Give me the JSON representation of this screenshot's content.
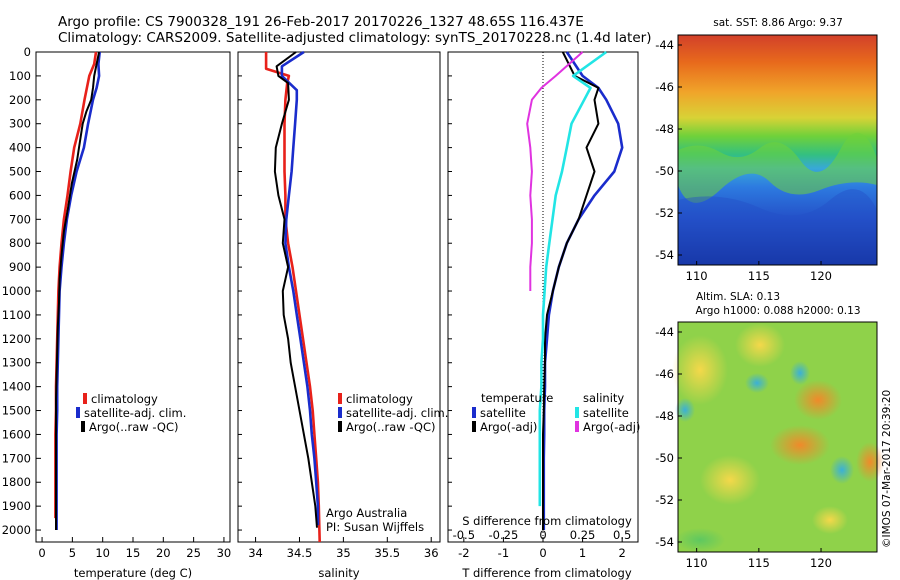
{
  "header": {
    "line1": "Argo profile: CS 7900328_191 26-Feb-2017 20170226_1327 48.65S 116.437E",
    "line2": "Climatology: CARS2009. Satellite-adjusted climatology: synTS_20170228.nc (1.4d later)"
  },
  "depth_ticks": [
    0,
    100,
    200,
    300,
    400,
    500,
    600,
    700,
    800,
    900,
    1000,
    1100,
    1200,
    1300,
    1400,
    1500,
    1600,
    1700,
    1800,
    1900,
    2000
  ],
  "panels": {
    "temperature": {
      "xlabel": "temperature (deg C)",
      "xticks": [
        0,
        5,
        10,
        15,
        20,
        25,
        30
      ],
      "legend": [
        "climatology",
        "satellite-adj. clim.",
        "Argo(..raw -QC)"
      ]
    },
    "salinity": {
      "xlabel": "salinity",
      "xticks": [
        "34",
        "34.5",
        "35",
        "35.5",
        "36"
      ],
      "legend": [
        "climatology",
        "satellite-adj. clim.",
        "Argo(..raw -QC)"
      ],
      "note1": "Argo Australia",
      "note2": "PI: Susan Wijffels"
    },
    "difference": {
      "xlabel": "T difference from climatology",
      "slabel": "S difference from climatology",
      "xticks": [
        "-2",
        "-1",
        "0",
        "1",
        "2"
      ],
      "sticks": [
        "-0.5",
        "-0.25",
        "0",
        "0.25",
        "0.5"
      ],
      "legend_head_t": "temperature",
      "legend_head_s": "salinity",
      "legend_t": [
        "satellite",
        "Argo(-adj)"
      ],
      "legend_s": [
        "satellite",
        "Argo(-adj)"
      ]
    }
  },
  "maps": {
    "sst_title": "sat. SST: 8.86 Argo: 9.37",
    "sla_title1": "Altim. SLA: 0.13",
    "sla_title2": "Argo h1000: 0.088 h2000: 0.13",
    "sst_yticks": [
      "-44",
      "-46",
      "-48",
      "-50",
      "-52",
      "-54"
    ],
    "sla_yticks": [
      "-44",
      "-46",
      "-48",
      "-50",
      "-52",
      "-54"
    ],
    "xticks": [
      "110",
      "115",
      "120"
    ]
  },
  "credit": "©IMOS 07-Mar-2017 20:39:20",
  "colors": {
    "climatology": "#e8211a",
    "satellite": "#1a2ccc",
    "argo": "#000000",
    "sat_s": "#22e5e5",
    "argo_s": "#e033e0"
  },
  "chart_data": [
    {
      "type": "line",
      "xlabel": "temperature (deg C)",
      "ylabel": "",
      "xlim": [
        -1,
        31
      ],
      "ylim": [
        2050,
        0
      ],
      "series": [
        {
          "name": "climatology",
          "x": [
            8.9,
            8.6,
            7.8,
            7.0,
            6.3,
            5.3,
            4.7,
            4.2,
            3.6,
            3.2,
            2.9,
            2.7,
            2.6,
            2.5,
            2.4,
            2.3,
            2.3,
            2.2,
            2.2,
            2.2,
            2.2,
            2.2
          ],
          "y": [
            0,
            50,
            100,
            200,
            300,
            400,
            500,
            600,
            700,
            800,
            900,
            1000,
            1100,
            1200,
            1300,
            1400,
            1500,
            1600,
            1700,
            1800,
            1900,
            1950
          ]
        },
        {
          "name": "satellite-adj. clim.",
          "x": [
            9.5,
            9.3,
            9.4,
            9.0,
            8.4,
            7.6,
            6.9,
            5.7,
            4.8,
            4.1,
            3.6,
            3.2,
            2.9,
            2.8,
            2.7,
            2.6,
            2.5,
            2.5,
            2.4,
            2.4,
            2.4,
            2.4,
            2.4
          ],
          "y": [
            0,
            50,
            100,
            150,
            200,
            300,
            400,
            500,
            600,
            700,
            800,
            900,
            1000,
            1100,
            1200,
            1300,
            1400,
            1500,
            1600,
            1700,
            1800,
            1900,
            2000
          ]
        },
        {
          "name": "Argo(..raw -QC)",
          "x": [
            9.4,
            9.0,
            8.6,
            8.4,
            8.1,
            7.3,
            6.7,
            6.1,
            5.8,
            4.9,
            4.3,
            3.6,
            3.2,
            2.9,
            2.8,
            2.6,
            2.5,
            2.4,
            2.3,
            2.3,
            2.3,
            2.3,
            2.3,
            2.3
          ],
          "y": [
            0,
            50,
            100,
            150,
            200,
            250,
            300,
            400,
            450,
            550,
            650,
            750,
            850,
            950,
            1050,
            1150,
            1250,
            1350,
            1450,
            1550,
            1650,
            1750,
            1850,
            2000
          ]
        }
      ]
    },
    {
      "type": "line",
      "xlabel": "salinity",
      "ylabel": "",
      "xlim": [
        33.8,
        36.1
      ],
      "ylim": [
        2050,
        0
      ],
      "series": [
        {
          "name": "climatology",
          "x": [
            34.12,
            34.12,
            34.38,
            34.36,
            34.34,
            34.33,
            34.33,
            34.33,
            34.34,
            34.34,
            34.37,
            34.42,
            34.46,
            34.5,
            34.54,
            34.58,
            34.62,
            34.65,
            34.67,
            34.69,
            34.71,
            34.72,
            34.73
          ],
          "y": [
            0,
            70,
            100,
            130,
            200,
            300,
            400,
            500,
            600,
            700,
            800,
            900,
            1000,
            1100,
            1200,
            1300,
            1400,
            1500,
            1600,
            1700,
            1800,
            1900,
            2050
          ]
        },
        {
          "name": "satellite-adj. clim.",
          "x": [
            34.55,
            34.3,
            34.3,
            34.47,
            34.47,
            34.45,
            34.43,
            34.41,
            34.38,
            34.35,
            34.34,
            34.38,
            34.43,
            34.47,
            34.51,
            34.55,
            34.59,
            34.62,
            34.64,
            34.67,
            34.69,
            34.71,
            34.71
          ],
          "y": [
            0,
            60,
            100,
            160,
            200,
            300,
            400,
            500,
            600,
            700,
            800,
            900,
            1000,
            1100,
            1200,
            1300,
            1400,
            1500,
            1600,
            1700,
            1800,
            1900,
            1980
          ]
        },
        {
          "name": "Argo(..raw -QC)",
          "x": [
            34.46,
            34.24,
            34.26,
            34.37,
            34.38,
            34.3,
            34.23,
            34.22,
            34.26,
            34.33,
            34.31,
            34.37,
            34.31,
            34.32,
            34.37,
            34.4,
            34.45,
            34.5,
            34.55,
            34.6,
            34.64,
            34.68,
            34.7
          ],
          "y": [
            0,
            60,
            100,
            130,
            200,
            300,
            400,
            500,
            600,
            700,
            800,
            900,
            1000,
            1100,
            1200,
            1300,
            1400,
            1500,
            1600,
            1700,
            1800,
            1900,
            1990
          ]
        }
      ]
    },
    {
      "type": "line",
      "xlabel": "T difference from climatology",
      "ylabel": "",
      "xlim": [
        -2.4,
        2.4
      ],
      "ylim": [
        2050,
        0
      ],
      "series": [
        {
          "name": "temperature satellite",
          "x": [
            0.6,
            1.0,
            1.4,
            1.6,
            1.9,
            2.0,
            1.8,
            1.3,
            0.9,
            0.6,
            0.4,
            0.25,
            0.15,
            0.1,
            0.05,
            0.05,
            0.03,
            0.03,
            0.02,
            0.02,
            0.02,
            0.02
          ],
          "y": [
            0,
            100,
            150,
            200,
            300,
            400,
            500,
            600,
            700,
            800,
            900,
            1000,
            1100,
            1200,
            1300,
            1400,
            1500,
            1600,
            1700,
            1800,
            1900,
            2000
          ]
        },
        {
          "name": "temperature Argo(-adj)",
          "x": [
            0.5,
            0.8,
            1.4,
            1.3,
            1.4,
            1.1,
            1.3,
            1.1,
            0.9,
            0.6,
            0.4,
            0.25,
            0.1,
            0.05,
            0.05,
            0.03,
            0.02,
            0.0,
            0.0,
            0.0,
            0.0,
            0.0
          ],
          "y": [
            0,
            100,
            150,
            200,
            300,
            400,
            500,
            600,
            700,
            800,
            900,
            1000,
            1100,
            1200,
            1300,
            1400,
            1500,
            1600,
            1700,
            1800,
            1900,
            2000
          ]
        },
        {
          "name": "salinity satellite",
          "x": [
            0.4,
            0.19,
            0.3,
            0.26,
            0.18,
            0.15,
            0.12,
            0.08,
            0.06,
            0.04,
            0.02,
            0.01,
            0.0,
            0.0,
            -0.01,
            -0.01,
            -0.02,
            -0.02,
            -0.02,
            -0.02,
            -0.02
          ],
          "y": [
            0,
            100,
            150,
            200,
            300,
            400,
            500,
            600,
            700,
            800,
            900,
            1000,
            1100,
            1200,
            1300,
            1400,
            1500,
            1600,
            1700,
            1800,
            1900
          ]
        },
        {
          "name": "salinity Argo(-adj)",
          "x": [
            0.25,
            0.08,
            -0.01,
            -0.07,
            -0.1,
            -0.08,
            -0.07,
            -0.08,
            -0.07,
            -0.07,
            -0.08,
            -0.08
          ],
          "y": [
            0,
            100,
            150,
            200,
            300,
            400,
            500,
            600,
            700,
            800,
            900,
            1000
          ]
        }
      ],
      "secondary_axis": {
        "label": "S difference from climatology",
        "xlim": [
          -0.6,
          0.6
        ]
      }
    }
  ]
}
